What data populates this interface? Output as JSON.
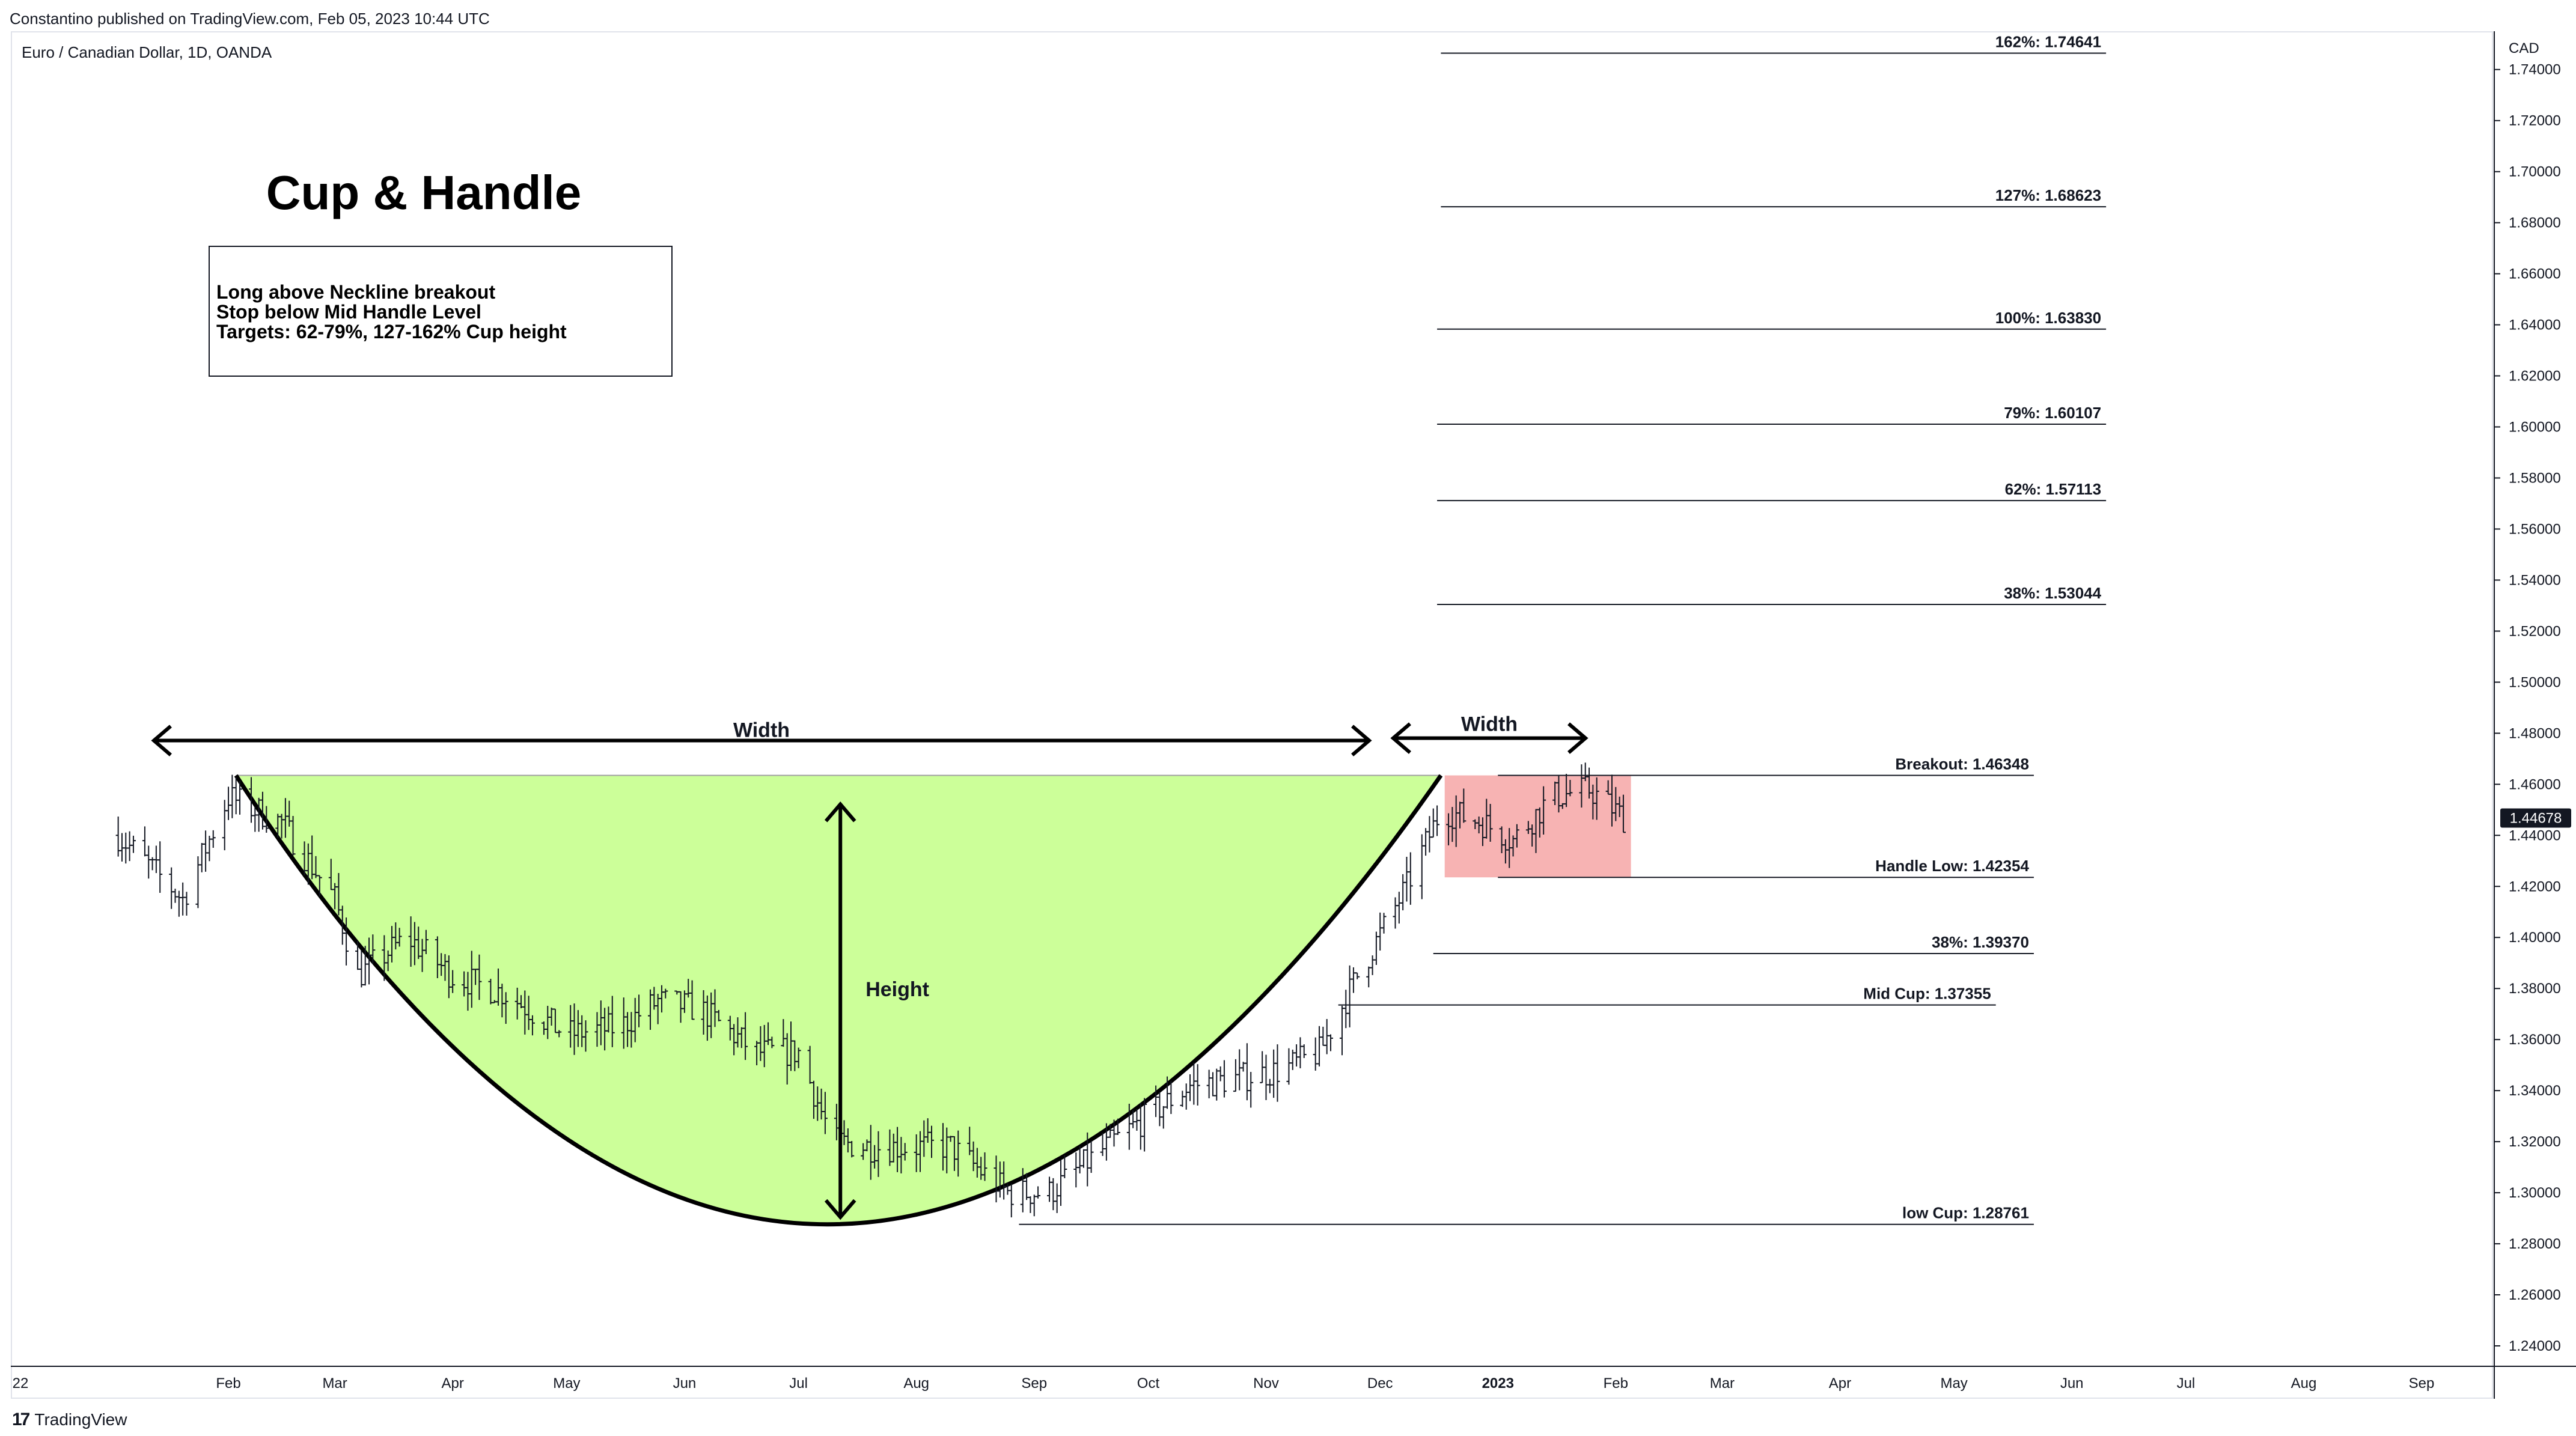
{
  "header": {
    "published": "Constantino published on TradingView.com, Feb 05, 2023 10:44 UTC",
    "symbol": "Euro / Canadian Dollar, 1D, OANDA"
  },
  "footer": {
    "brand": "TradingView",
    "brand_icon": "tradingview-logo-icon"
  },
  "colors": {
    "cup_fill": "#ccff99",
    "handle_fill": "#f7b3b3",
    "line": "#000000",
    "price_tag_bg": "#131722",
    "price_tag_text": "#ffffff"
  },
  "chart_data": {
    "type": "ohlc",
    "currency_label": "CAD",
    "last_price": "1.44678",
    "y_ticks": [
      "1.74000",
      "1.72000",
      "1.70000",
      "1.68000",
      "1.66000",
      "1.64000",
      "1.62000",
      "1.60000",
      "1.58000",
      "1.56000",
      "1.54000",
      "1.52000",
      "1.50000",
      "1.48000",
      "1.46000",
      "1.44000",
      "1.42000",
      "1.40000",
      "1.38000",
      "1.36000",
      "1.34000",
      "1.32000",
      "1.30000",
      "1.28000",
      "1.26000",
      "1.24000"
    ],
    "ylim": [
      1.232,
      1.755
    ],
    "x_ticks": [
      "22",
      "Feb",
      "Mar",
      "Apr",
      "May",
      "Jun",
      "Jul",
      "Aug",
      "Sep",
      "Oct",
      "Nov",
      "Dec",
      "2023",
      "Feb",
      "Mar",
      "Apr",
      "May",
      "Jun",
      "Jul",
      "Aug",
      "Sep"
    ],
    "price_path": [
      [
        "2022-01-03",
        1.44
      ],
      [
        "2022-01-20",
        1.415
      ],
      [
        "2022-02-01",
        1.455
      ],
      [
        "2022-02-15",
        1.445
      ],
      [
        "2022-03-01",
        1.415
      ],
      [
        "2022-03-07",
        1.385
      ],
      [
        "2022-03-20",
        1.4
      ],
      [
        "2022-04-01",
        1.385
      ],
      [
        "2022-04-15",
        1.378
      ],
      [
        "2022-05-01",
        1.362
      ],
      [
        "2022-05-15",
        1.365
      ],
      [
        "2022-05-25",
        1.375
      ],
      [
        "2022-06-05",
        1.372
      ],
      [
        "2022-06-20",
        1.355
      ],
      [
        "2022-07-01",
        1.355
      ],
      [
        "2022-07-10",
        1.32
      ],
      [
        "2022-07-20",
        1.318
      ],
      [
        "2022-08-10",
        1.318
      ],
      [
        "2022-08-25",
        1.3
      ],
      [
        "2022-09-05",
        1.3
      ],
      [
        "2022-09-20",
        1.318
      ],
      [
        "2022-10-01",
        1.33
      ],
      [
        "2022-10-12",
        1.342
      ],
      [
        "2022-10-25",
        1.345
      ],
      [
        "2022-11-05",
        1.348
      ],
      [
        "2022-11-15",
        1.355
      ],
      [
        "2022-11-25",
        1.385
      ],
      [
        "2022-12-08",
        1.42
      ],
      [
        "2022-12-17",
        1.45
      ],
      [
        "2022-12-28",
        1.445
      ],
      [
        "2023-01-05",
        1.438
      ],
      [
        "2023-01-15",
        1.455
      ],
      [
        "2023-01-25",
        1.458
      ],
      [
        "2023-02-03",
        1.447
      ]
    ],
    "levels": [
      {
        "label": "162%: 1.74641",
        "value": 1.74641,
        "from": "2022-12-17",
        "to": "2023-06-10"
      },
      {
        "label": "127%: 1.68623",
        "value": 1.68623,
        "from": "2022-12-17",
        "to": "2023-06-10"
      },
      {
        "label": "100%: 1.63830",
        "value": 1.6383,
        "from": "2022-12-16",
        "to": "2023-06-10"
      },
      {
        "label": "79%: 1.60107",
        "value": 1.60107,
        "from": "2022-12-16",
        "to": "2023-06-10"
      },
      {
        "label": "62%: 1.57113",
        "value": 1.57113,
        "from": "2022-12-16",
        "to": "2023-06-10"
      },
      {
        "label": "38%: 1.53044",
        "value": 1.53044,
        "from": "2022-12-16",
        "to": "2023-06-10"
      },
      {
        "label": "Breakout: 1.46348",
        "value": 1.46348,
        "from": "2023-01-01",
        "to": "2023-05-22"
      },
      {
        "label": "Handle Low: 1.42354",
        "value": 1.42354,
        "from": "2023-01-01",
        "to": "2023-05-22"
      },
      {
        "label": "38%: 1.39370",
        "value": 1.3937,
        "from": "2022-12-15",
        "to": "2023-05-22"
      },
      {
        "label": "Mid Cup: 1.37355",
        "value": 1.37355,
        "from": "2022-11-20",
        "to": "2023-05-12"
      },
      {
        "label": "low Cup: 1.28761",
        "value": 1.28761,
        "from": "2022-08-28",
        "to": "2023-05-22"
      }
    ],
    "cup": {
      "start": "2022-02-03",
      "bottom": "2022-07-12",
      "end": "2022-12-17",
      "top": 1.46348,
      "low": 1.28761
    },
    "handle": {
      "start": "2022-12-18",
      "end": "2023-02-05",
      "top": 1.46348,
      "low": 1.42354
    },
    "annotations": {
      "title": "Cup & Handle",
      "notes": [
        "Long above Neckline breakout",
        "Stop below Mid Handle Level",
        "Targets: 62-79%, 127-162% Cup height"
      ],
      "cup_width_label": "Width",
      "handle_width_label": "Width",
      "height_label": "Height"
    }
  }
}
